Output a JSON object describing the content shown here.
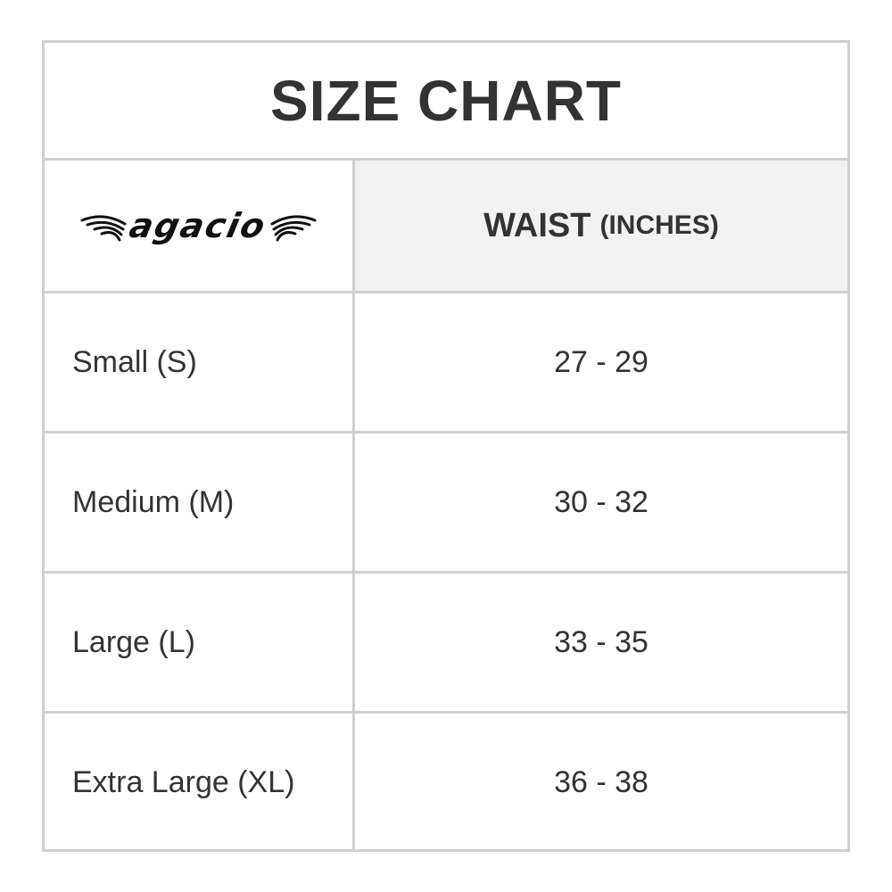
{
  "title": "SIZE CHART",
  "header": {
    "logo_text": "agacio",
    "column_label": "WAIST",
    "column_unit": "(INCHES)"
  },
  "rows": [
    {
      "size": "Small (S)",
      "waist": "27 - 29"
    },
    {
      "size": "Medium (M)",
      "waist": "30 - 32"
    },
    {
      "size": "Large (L)",
      "waist": "33 - 35"
    },
    {
      "size": "Extra Large (XL)",
      "waist": "36 - 38"
    }
  ],
  "colors": {
    "border": "#cfcfcf",
    "header_bg": "#f2f2f2",
    "text": "#333333"
  }
}
